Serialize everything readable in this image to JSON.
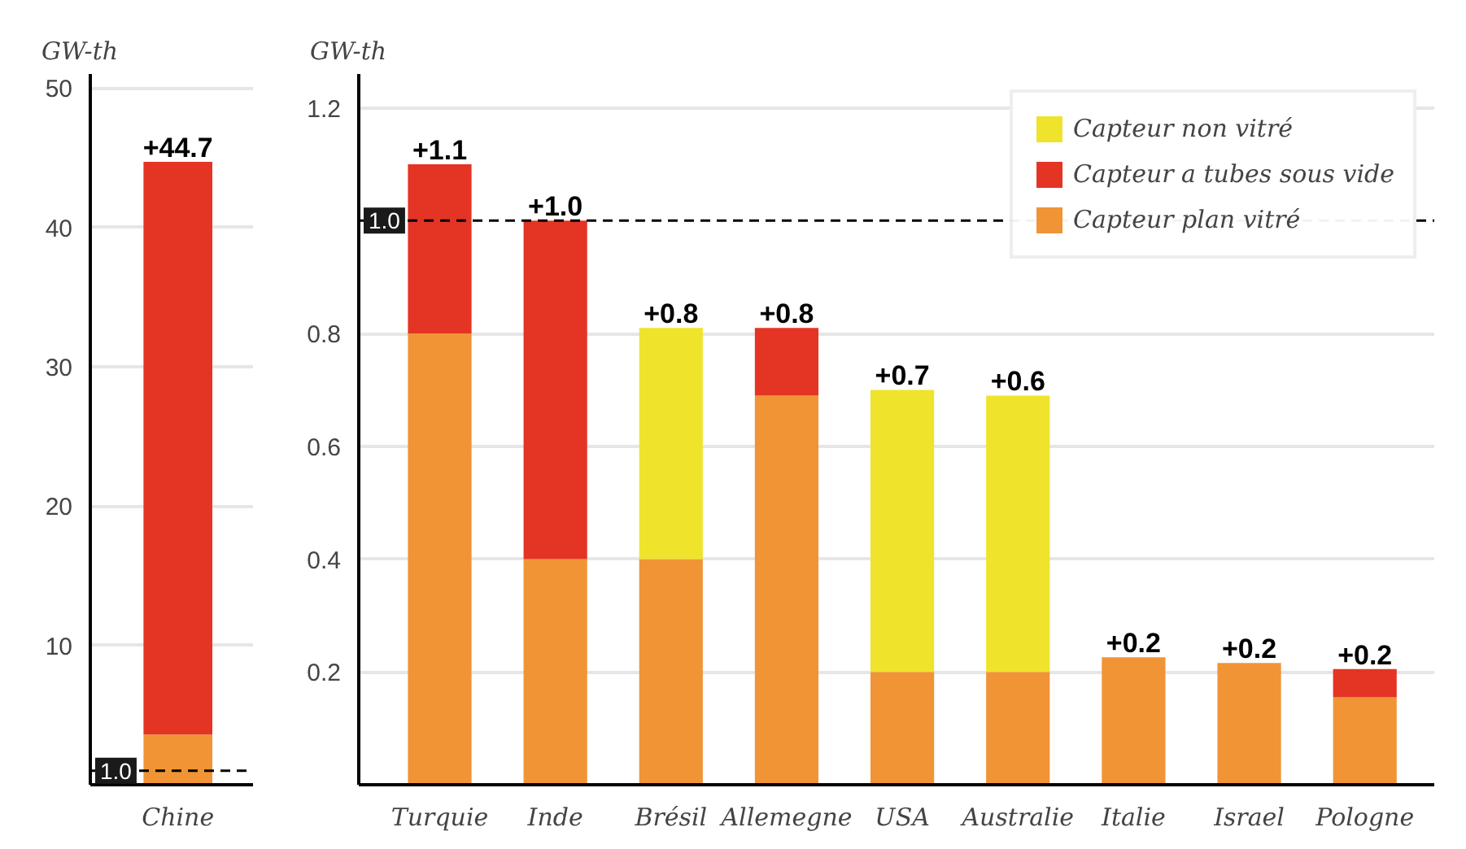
{
  "chart_data": [
    {
      "type": "bar",
      "ylabel": "GW-th",
      "categories": [
        "Chine"
      ],
      "stacked": true,
      "series": [
        {
          "color": "#f09435",
          "values": [
            3.6
          ]
        },
        {
          "color": "#e43424",
          "values": [
            41.1
          ]
        },
        {
          "color": "#f0e32c",
          "values": [
            0
          ]
        }
      ],
      "totals": [
        "+44.7"
      ],
      "ylim": [
        0,
        51
      ],
      "yticks": [
        10,
        20,
        30,
        40,
        50
      ],
      "grid": "y",
      "ref_lines": [
        {
          "axis": "y",
          "value": 1.0,
          "label": "1.0",
          "line_style": "dashed",
          "color": "#000000"
        }
      ],
      "legend": false
    },
    {
      "type": "bar",
      "ylabel": "GW-th",
      "categories": [
        "Turquie",
        "Inde",
        "Brésil",
        "Allemegne",
        "USA",
        "Australie",
        "Italie",
        "Israel",
        "Pologne"
      ],
      "stacked": true,
      "series": [
        {
          "name": "Capteur plan vitré",
          "color": "#f09435",
          "values": [
            0.8,
            0.4,
            0.4,
            0.69,
            0.2,
            0.2,
            0.226,
            0.216,
            0.155
          ]
        },
        {
          "name": "Capteur a tubes sous vide",
          "color": "#e43424",
          "values": [
            0.3,
            0.6,
            0,
            0.12,
            0,
            0,
            0,
            0,
            0.05
          ]
        },
        {
          "name": "Capteur non vitré",
          "color": "#f0e32c",
          "values": [
            0,
            0,
            0.41,
            0,
            0.5,
            0.49,
            0,
            0,
            0
          ]
        }
      ],
      "totals": [
        "+1.1",
        "+1.0",
        "+0.8",
        "+0.8",
        "+0.7",
        "+0.6",
        "+0.2",
        "+0.2",
        "+0.2"
      ],
      "ylim": [
        0,
        1.26
      ],
      "yticks": [
        0.2,
        0.4,
        0.6,
        0.8,
        1.2
      ],
      "grid": "y",
      "ref_lines": [
        {
          "axis": "y",
          "value": 1.0,
          "label": "1.0",
          "line_style": "dashed",
          "color": "#000000"
        }
      ],
      "legend": "top right"
    }
  ]
}
